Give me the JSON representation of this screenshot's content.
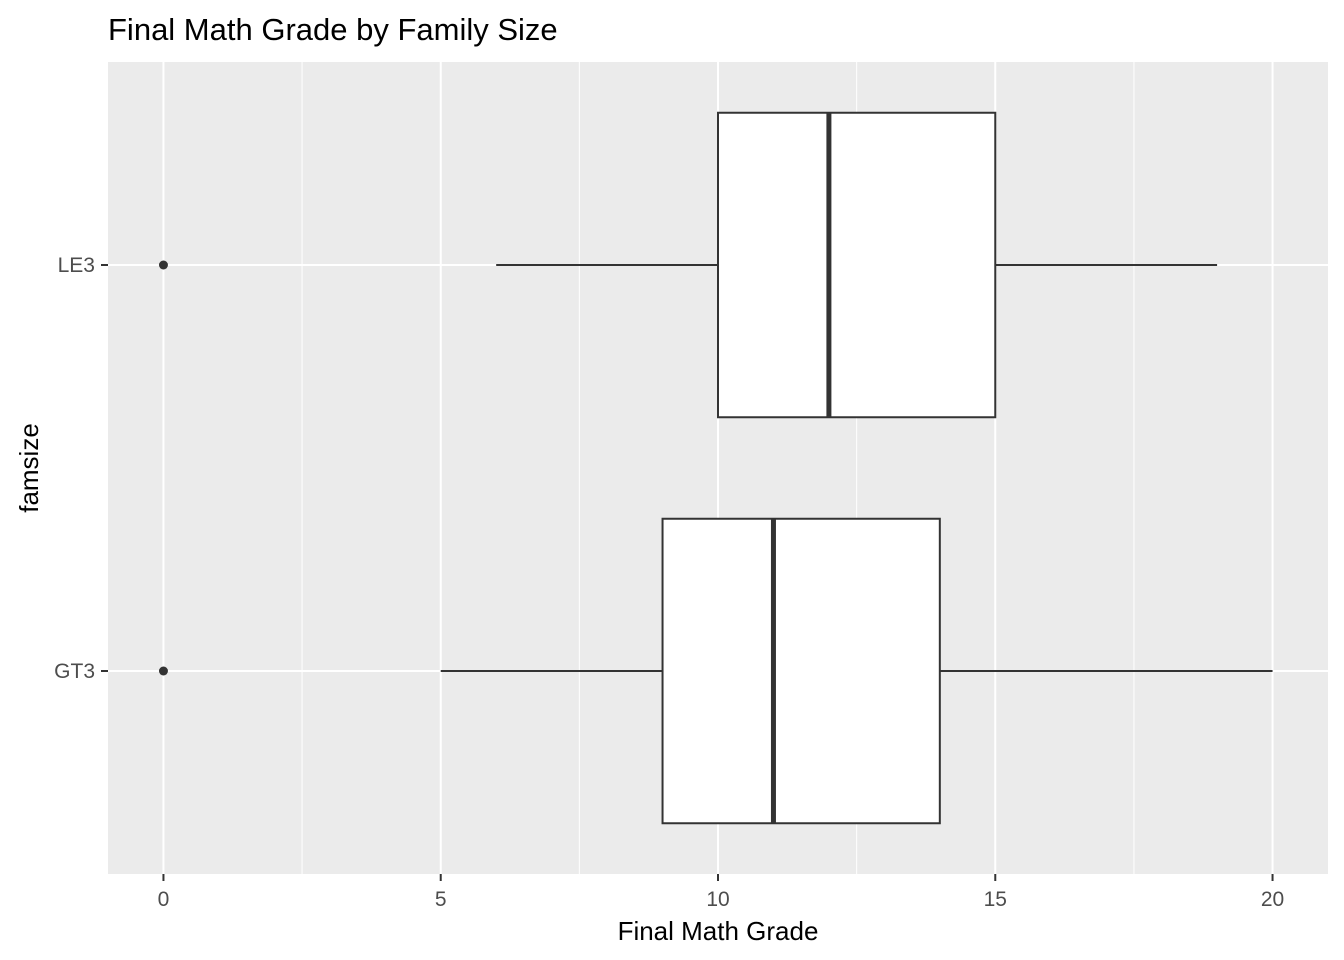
{
  "chart_data": {
    "type": "boxplot",
    "orientation": "horizontal",
    "title": "Final Math Grade by Family Size",
    "xlabel": "Final Math Grade",
    "ylabel": "famsize",
    "xlim": [
      -1,
      21
    ],
    "x_ticks": [
      0,
      5,
      10,
      15,
      20
    ],
    "grid": true,
    "categories": [
      "LE3",
      "GT3"
    ],
    "series": [
      {
        "category": "LE3",
        "whisker_low": 6,
        "q1": 10,
        "median": 12,
        "q3": 15,
        "whisker_high": 19,
        "outliers": [
          0
        ]
      },
      {
        "category": "GT3",
        "whisker_low": 5,
        "q1": 9,
        "median": 11,
        "q3": 14,
        "whisker_high": 20,
        "outliers": [
          0
        ]
      }
    ],
    "colors": {
      "panel_background": "#ebebeb",
      "grid": "#ffffff",
      "box_fill": "#ffffff",
      "box_line": "#333333",
      "tick_text": "#4d4d4d"
    }
  }
}
